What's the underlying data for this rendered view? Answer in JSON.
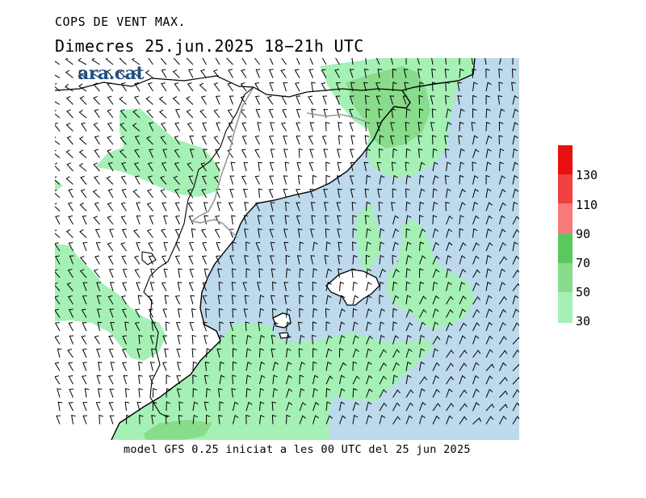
{
  "header": {
    "title": "COPS DE VENT MAX.",
    "subtitle": "Dimecres  25.jun.2025 18−21h UTC"
  },
  "brand": {
    "logo_text": "ara.cat"
  },
  "footer": {
    "model_info": "model GFS 0.25 iniciat a les 00 UTC del 25 jun 2025"
  },
  "colors": {
    "sea": "#bdd9ec",
    "land": "#ffffff",
    "wind_30_50": "#a5f0b5",
    "wind_50_70": "#88dc8b",
    "wind_70_90": "#5bc85d",
    "wind_90_110": "#f97a7a",
    "wind_110_130": "#f04040",
    "wind_130_plus": "#e81010"
  },
  "legend": {
    "labels": [
      "130",
      "110",
      "90",
      "70",
      "50",
      "30"
    ],
    "bins": [
      {
        "from": 130,
        "to": 150,
        "color": "#e81010"
      },
      {
        "from": 110,
        "to": 130,
        "color": "#f04040"
      },
      {
        "from": 90,
        "to": 110,
        "color": "#f97a7a"
      },
      {
        "from": 70,
        "to": 90,
        "color": "#5bc85d"
      },
      {
        "from": 50,
        "to": 70,
        "color": "#88dc8b"
      },
      {
        "from": 30,
        "to": 50,
        "color": "#a5f0b5"
      }
    ]
  }
}
